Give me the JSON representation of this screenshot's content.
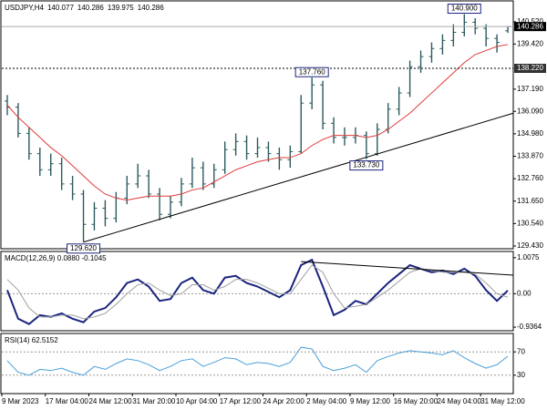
{
  "chart_data": [
    {
      "type": "candlestick",
      "title": "USDJPY,H4",
      "color": "#2b5a5e",
      "categories": [
        "9 Mar 2023",
        null,
        null,
        null,
        "17 Mar 04:00",
        null,
        null,
        null,
        "24 Mar 12:00",
        null,
        null,
        null,
        "31 Mar 20:00",
        null,
        null,
        null,
        "10 Apr 04:00",
        null,
        null,
        null,
        "17 Apr 12:00",
        null,
        null,
        null,
        "24 Apr 20:00",
        null,
        null,
        null,
        "2 May 04:00",
        null,
        null,
        null,
        "9 May 12:00",
        null,
        null,
        null,
        "16 May 20:00",
        null,
        null,
        null,
        "24 May 04:00",
        null,
        null,
        null,
        "31 May 12:00",
        null,
        null
      ],
      "ohlc": [
        [
          136.6,
          136.9,
          135.9,
          136.3
        ],
        [
          136.3,
          136.5,
          134.8,
          135.0
        ],
        [
          135.0,
          135.3,
          133.7,
          134.0
        ],
        [
          134.0,
          134.3,
          132.9,
          133.2
        ],
        [
          133.2,
          134.0,
          132.9,
          133.5
        ],
        [
          133.5,
          133.8,
          132.2,
          132.5
        ],
        [
          132.5,
          132.9,
          131.7,
          132.0
        ],
        [
          132.0,
          132.2,
          129.62,
          130.5
        ],
        [
          130.5,
          131.6,
          130.2,
          131.3
        ],
        [
          131.3,
          131.7,
          130.4,
          130.8
        ],
        [
          130.8,
          132.1,
          130.6,
          131.8
        ],
        [
          131.8,
          132.9,
          131.5,
          132.5
        ],
        [
          132.5,
          133.5,
          132.3,
          132.9
        ],
        [
          132.9,
          133.2,
          131.8,
          132.0
        ],
        [
          132.0,
          132.3,
          130.7,
          131.0
        ],
        [
          131.0,
          131.9,
          130.8,
          131.6
        ],
        [
          131.6,
          132.8,
          131.4,
          132.5
        ],
        [
          132.5,
          133.8,
          132.3,
          133.3
        ],
        [
          133.3,
          133.6,
          132.2,
          132.5
        ],
        [
          132.5,
          133.5,
          132.3,
          133.2
        ],
        [
          133.2,
          134.6,
          133.0,
          134.2
        ],
        [
          134.2,
          135.0,
          133.9,
          134.6
        ],
        [
          134.6,
          134.9,
          133.7,
          134.0
        ],
        [
          134.0,
          134.8,
          133.8,
          134.3
        ],
        [
          134.3,
          134.6,
          133.6,
          134.0
        ],
        [
          134.0,
          134.3,
          133.2,
          133.7
        ],
        [
          133.7,
          134.4,
          133.3,
          134.1
        ],
        [
          134.1,
          136.9,
          134.0,
          136.5
        ],
        [
          136.5,
          137.76,
          136.2,
          137.4
        ],
        [
          137.4,
          137.6,
          135.2,
          135.5
        ],
        [
          135.5,
          135.8,
          134.5,
          134.8
        ],
        [
          134.8,
          135.3,
          134.4,
          134.8
        ],
        [
          134.8,
          135.3,
          134.5,
          134.9
        ],
        [
          134.9,
          135.1,
          133.73,
          134.0
        ],
        [
          134.0,
          135.5,
          133.9,
          135.2
        ],
        [
          135.2,
          136.5,
          135.0,
          136.2
        ],
        [
          136.2,
          137.3,
          135.9,
          137.0
        ],
        [
          137.0,
          138.6,
          136.8,
          138.3
        ],
        [
          138.3,
          139.1,
          138.0,
          138.8
        ],
        [
          138.8,
          139.5,
          138.5,
          139.2
        ],
        [
          139.2,
          139.9,
          138.9,
          139.6
        ],
        [
          139.6,
          140.4,
          139.3,
          140.0
        ],
        [
          140.0,
          140.9,
          139.8,
          140.5
        ],
        [
          140.5,
          140.7,
          139.9,
          140.2
        ],
        [
          140.2,
          140.4,
          139.3,
          139.7
        ],
        [
          139.7,
          139.9,
          139.0,
          139.5
        ],
        [
          140.077,
          140.286,
          139.975,
          140.286
        ]
      ],
      "moving_average": {
        "color": "#e03a3a",
        "values": [
          136.4,
          135.8,
          135.3,
          134.8,
          134.3,
          133.9,
          133.4,
          132.9,
          132.4,
          132.0,
          131.8,
          131.7,
          131.8,
          131.9,
          131.9,
          131.9,
          132.0,
          132.2,
          132.3,
          132.6,
          132.9,
          133.2,
          133.4,
          133.6,
          133.7,
          133.8,
          133.8,
          134.0,
          134.4,
          134.7,
          134.9,
          134.9,
          134.9,
          134.8,
          134.9,
          135.2,
          135.6,
          136.0,
          136.5,
          137.0,
          137.5,
          138.0,
          138.5,
          138.9,
          139.1,
          139.3,
          139.4
        ]
      },
      "ylim": [
        129.34,
        141.51
      ],
      "yticks": [
        {
          "value": 140.52,
          "label": "140.520"
        },
        {
          "value": 139.42,
          "label": "139.420"
        },
        {
          "value": 137.19,
          "label": "137.190"
        },
        {
          "value": 136.09,
          "label": "136.090"
        },
        {
          "value": 134.98,
          "label": "134.980"
        },
        {
          "value": 133.87,
          "label": "133.870"
        },
        {
          "value": 132.76,
          "label": "132.760"
        },
        {
          "value": 131.65,
          "label": "131.650"
        },
        {
          "value": 130.54,
          "label": "130.540"
        },
        {
          "value": 129.43,
          "label": "129.430"
        }
      ],
      "last_price": 140.286,
      "hlines": [
        {
          "value": 138.22,
          "label": "138.220"
        }
      ],
      "annotations": [
        {
          "value": 140.9,
          "label": "140.900"
        },
        {
          "value": 137.76,
          "label": "137.760"
        },
        {
          "value": 133.73,
          "label": "133.730"
        },
        {
          "value": 129.62,
          "label": "129.620"
        }
      ],
      "trendline": {
        "from": 129.62,
        "to": 136.0
      }
    },
    {
      "type": "line",
      "title": "MACD(12,26,9) 0.0880 -0.1045",
      "series": [
        {
          "color": "#1a237e",
          "values": [
            0.1,
            -0.7,
            -0.85,
            -0.6,
            -0.65,
            -0.55,
            -0.7,
            -0.8,
            -0.5,
            -0.4,
            -0.1,
            0.3,
            0.4,
            0.2,
            -0.2,
            -0.15,
            0.3,
            0.45,
            0.1,
            0.0,
            0.45,
            0.5,
            0.3,
            0.2,
            0.05,
            -0.1,
            0.1,
            0.8,
            0.95,
            0.2,
            -0.6,
            -0.45,
            -0.2,
            -0.3,
            0.0,
            0.3,
            0.55,
            0.8,
            0.7,
            0.6,
            0.65,
            0.55,
            0.7,
            0.5,
            0.1,
            -0.2,
            0.09
          ]
        },
        {
          "color": "#a0a0a0",
          "values": [
            0.4,
            0.1,
            -0.4,
            -0.65,
            -0.65,
            -0.6,
            -0.6,
            -0.7,
            -0.65,
            -0.55,
            -0.3,
            0.0,
            0.25,
            0.3,
            0.1,
            -0.05,
            0.0,
            0.25,
            0.25,
            0.1,
            0.2,
            0.4,
            0.4,
            0.3,
            0.15,
            0.0,
            0.0,
            0.4,
            0.8,
            0.6,
            0.0,
            -0.4,
            -0.35,
            -0.3,
            -0.1,
            0.1,
            0.35,
            0.6,
            0.7,
            0.65,
            0.6,
            0.6,
            0.6,
            0.55,
            0.3,
            0.0,
            -0.1
          ]
        }
      ],
      "ylim": [
        -1.011,
        1.157
      ],
      "yticks": [
        1.0075,
        {
          "value": 0,
          "label": "0.00"
        },
        -0.9364
      ],
      "dashed_levels": [
        0
      ],
      "trendline": {
        "from": 0.9,
        "to": 0.52
      }
    },
    {
      "type": "line",
      "title": "RSI(14) 62.5152",
      "series": [
        {
          "color": "#4a9fd8",
          "values": [
            55,
            35,
            30,
            40,
            38,
            42,
            35,
            30,
            45,
            40,
            50,
            58,
            55,
            48,
            38,
            45,
            55,
            58,
            45,
            52,
            60,
            58,
            48,
            52,
            50,
            45,
            52,
            78,
            75,
            45,
            38,
            42,
            48,
            35,
            55,
            62,
            68,
            72,
            70,
            68,
            65,
            72,
            60,
            50,
            42,
            48,
            62.5
          ]
        }
      ],
      "ylim": [
        0,
        100
      ],
      "yticks": [
        70,
        30
      ],
      "dashed_levels": [
        70,
        30
      ]
    }
  ]
}
